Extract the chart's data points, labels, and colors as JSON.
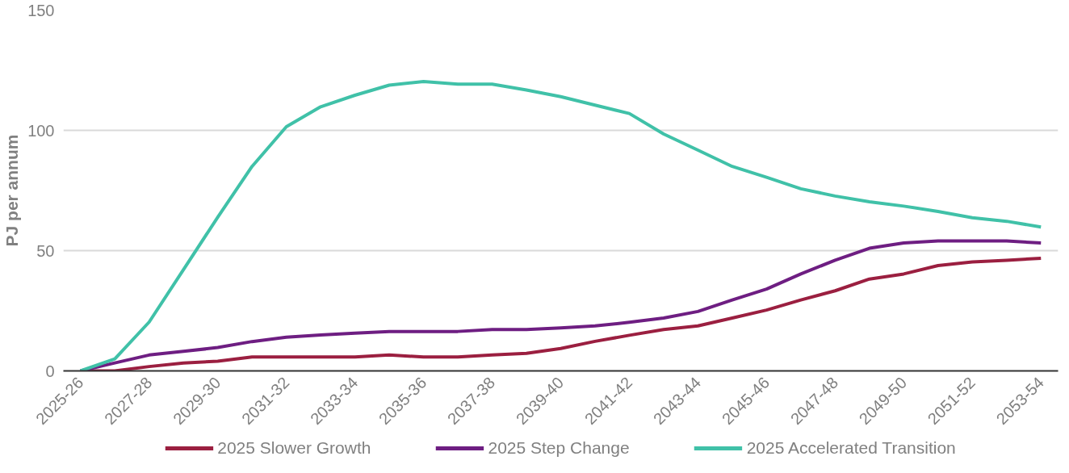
{
  "chart_data": {
    "type": "line",
    "ylabel": "PJ per annum",
    "categories": [
      "2025-26",
      null,
      "2027-28",
      null,
      "2029-30",
      null,
      "2031-32",
      null,
      "2033-34",
      null,
      "2035-36",
      null,
      "2037-38",
      null,
      "2039-40",
      null,
      "2041-42",
      null,
      "2043-44",
      null,
      "2045-46",
      null,
      "2047-48",
      null,
      "2049-50",
      null,
      "2051-52",
      null,
      "2053-54"
    ],
    "series": [
      {
        "name": "2025 Slower Growth",
        "color": "#9b1f40",
        "values": [
          0,
          0,
          1.8,
          3.3,
          4,
          5.8,
          5.8,
          5.8,
          5.8,
          6.6,
          5.8,
          5.8,
          6.6,
          7.3,
          9.3,
          12.3,
          14.8,
          17.2,
          18.7,
          22,
          25.3,
          29.5,
          33.3,
          38.2,
          40.3,
          43.8,
          45.3,
          46,
          46.8
        ]
      },
      {
        "name": "2025 Step Change",
        "color": "#6e1e82",
        "values": [
          0,
          3.3,
          6.6,
          8.1,
          9.7,
          12.2,
          14,
          14.9,
          15.7,
          16.4,
          16.4,
          16.4,
          17.2,
          17.2,
          17.9,
          18.7,
          20.2,
          22,
          24.7,
          29.5,
          34,
          40.3,
          46,
          51,
          53.2,
          54,
          54,
          54,
          53.2
        ]
      },
      {
        "name": "2025 Accelerated Transition",
        "color": "#40c1a8",
        "values": [
          0,
          5,
          20.3,
          42.1,
          63.9,
          85,
          101.5,
          109.8,
          114.6,
          118.8,
          120.3,
          119.2,
          119.2,
          116.8,
          114,
          110.5,
          107,
          98.5,
          91.8,
          85,
          80.5,
          75.7,
          72.7,
          70.3,
          68.5,
          66.3,
          63.7,
          62.2,
          59.8
        ]
      }
    ],
    "ylim": [
      0,
      150
    ],
    "yticks": [
      0,
      50,
      100,
      150
    ],
    "grid": "y",
    "legend": "bottom",
    "line_style": "solid",
    "marker": "none"
  }
}
